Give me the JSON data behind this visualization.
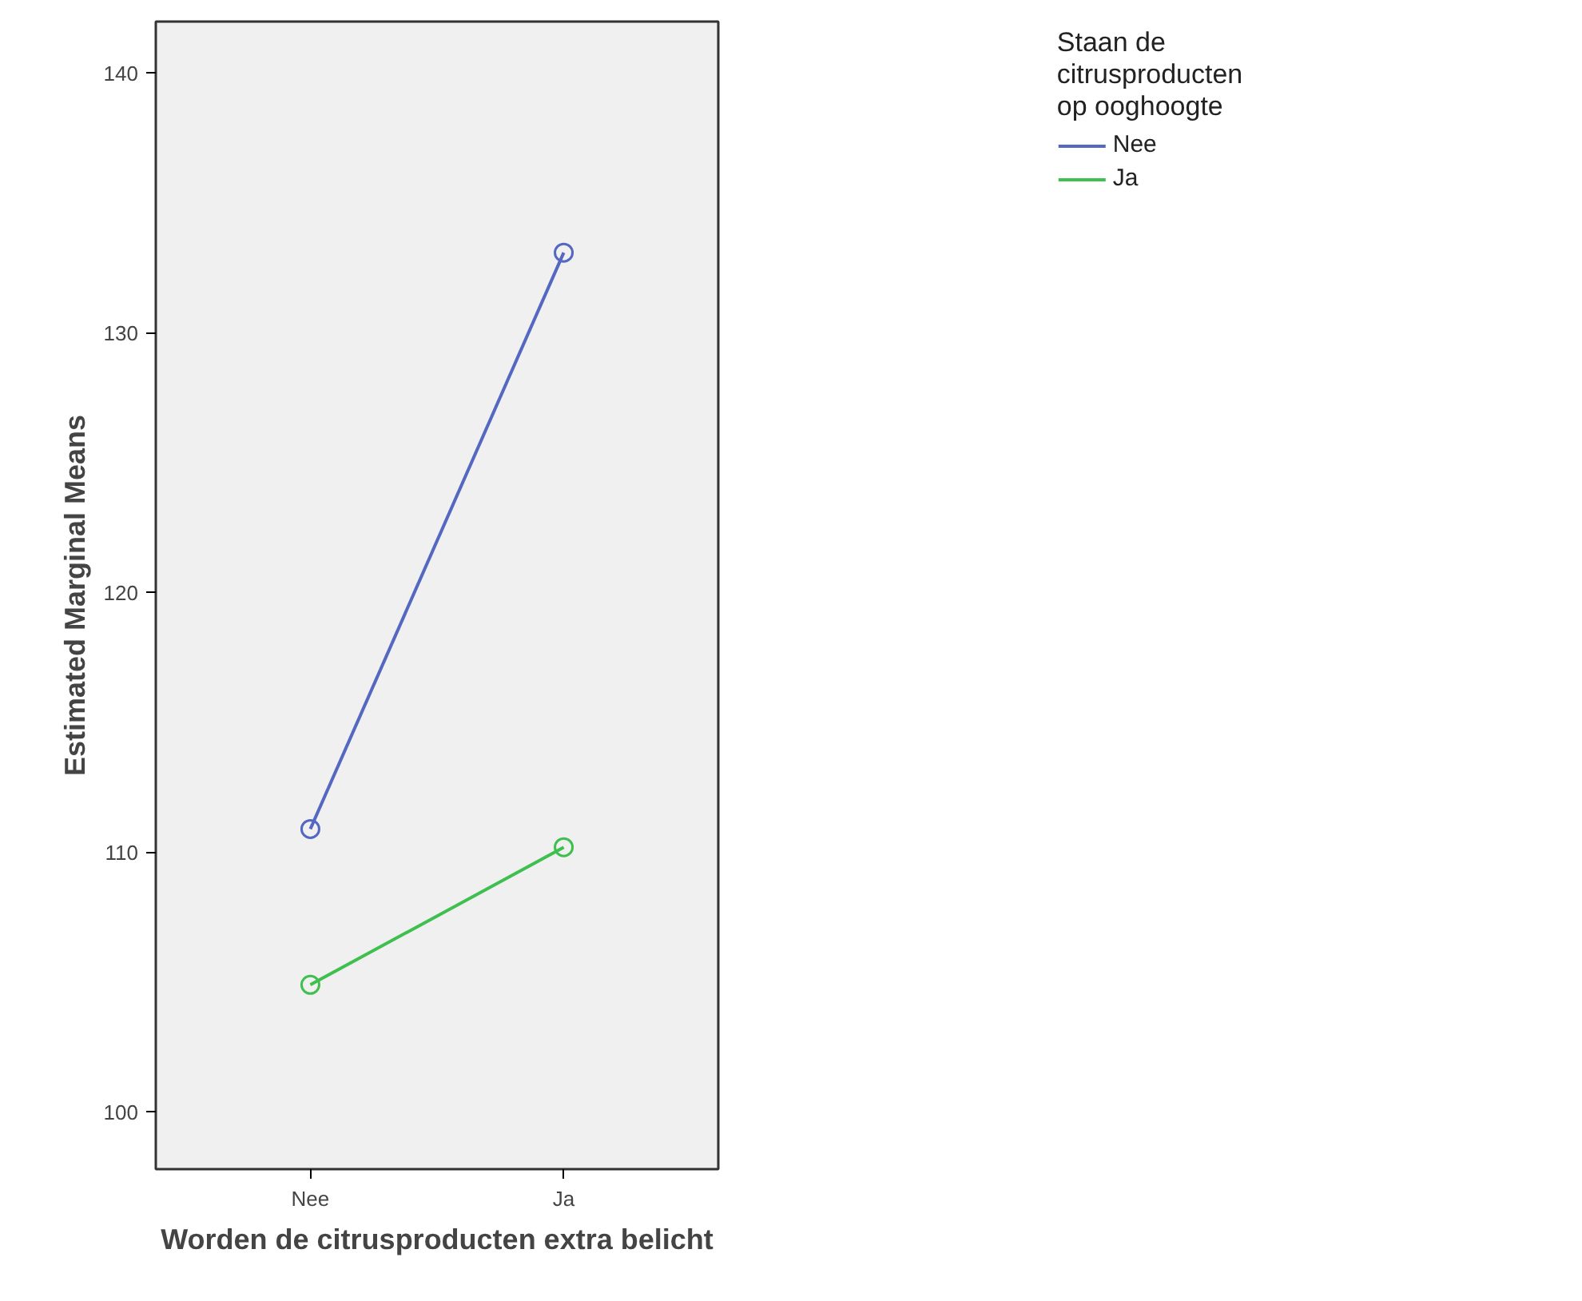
{
  "chart_data": {
    "type": "line",
    "xlabel": "Worden de citrusproducten extra belicht",
    "ylabel": "Estimated Marginal Means",
    "legend_title": "Staan de\ncitrusproducten\nop ooghoogte",
    "categories": [
      "Nee",
      "Ja"
    ],
    "series": [
      {
        "name": "Nee",
        "color": "#5468c2",
        "values": [
          110.9,
          133.1
        ]
      },
      {
        "name": "Ja",
        "color": "#3fbf4f",
        "values": [
          104.9,
          110.2
        ]
      }
    ],
    "ylim": [
      97.8,
      142.0
    ],
    "yticks": [
      100,
      110,
      120,
      130,
      140
    ],
    "grid": false,
    "legend": "top right",
    "marker": "circle",
    "line_style": "solid"
  }
}
